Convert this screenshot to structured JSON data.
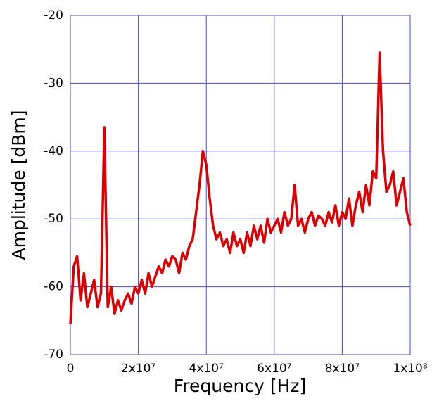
{
  "chart_data": {
    "type": "line",
    "x_label": "Frequency [Hz]",
    "y_label": "Amplitude [dBm]",
    "x": [
      0,
      1000000,
      2000000,
      3000000,
      4000000,
      5000000,
      6000000,
      7000000,
      8000000,
      9000000,
      10000000,
      11000000,
      12000000,
      13000000,
      14000000,
      15000000,
      16000000,
      17000000,
      18000000,
      19000000,
      20000000,
      21000000,
      22000000,
      23000000,
      24000000,
      25000000,
      26000000,
      27000000,
      28000000,
      29000000,
      30000000,
      31000000,
      32000000,
      33000000,
      34000000,
      35000000,
      36000000,
      37000000,
      38000000,
      39000000,
      40000000,
      41000000,
      42000000,
      43000000,
      44000000,
      45000000,
      46000000,
      47000000,
      48000000,
      49000000,
      50000000,
      51000000,
      52000000,
      53000000,
      54000000,
      55000000,
      56000000,
      57000000,
      58000000,
      59000000,
      60000000,
      61000000,
      62000000,
      63000000,
      64000000,
      65000000,
      66000000,
      67000000,
      68000000,
      69000000,
      70000000,
      71000000,
      72000000,
      73000000,
      74000000,
      75000000,
      76000000,
      77000000,
      78000000,
      79000000,
      80000000,
      81000000,
      82000000,
      83000000,
      84000000,
      85000000,
      86000000,
      87000000,
      88000000,
      89000000,
      90000000,
      91000000,
      92000000,
      93000000,
      94000000,
      95000000,
      96000000,
      97000000,
      98000000,
      99000000,
      100000000
    ],
    "values": [
      -65.5,
      -57,
      -55.5,
      -62,
      -58,
      -63,
      -61,
      -59,
      -63,
      -61,
      -36.5,
      -63,
      -60,
      -64,
      -62,
      -63.5,
      -62,
      -61,
      -62.5,
      -60,
      -61,
      -59,
      -61,
      -58,
      -60,
      -58.5,
      -57,
      -58,
      -56,
      -57,
      -55.5,
      -56,
      -58,
      -55,
      -56,
      -54,
      -53,
      -49,
      -45,
      -40,
      -42,
      -47,
      -51,
      -53,
      -52,
      -54,
      -53,
      -55,
      -52,
      -54,
      -53,
      -55,
      -52,
      -54,
      -51,
      -53,
      -51,
      -53.5,
      -50,
      -52,
      -51,
      -50,
      -52,
      -49,
      -51,
      -50,
      -45,
      -51,
      -50,
      -52,
      -50,
      -49,
      -51,
      -49.5,
      -50,
      -51,
      -49,
      -50.5,
      -48,
      -51,
      -49,
      -50,
      -47,
      -51,
      -48,
      -46,
      -49,
      -45,
      -48,
      -43,
      -44,
      -25.5,
      -40,
      -46,
      -45,
      -43,
      -48,
      -46,
      -44,
      -49,
      -51
    ],
    "color": "#dd0000",
    "xlim": [
      0,
      100000000
    ],
    "xticks": [
      0,
      {
        "value": 20000000,
        "label": "2x10⁷"
      },
      {
        "value": 40000000,
        "label": "4x10⁷"
      },
      {
        "value": 60000000,
        "label": "6x10⁷"
      },
      {
        "value": 80000000,
        "label": "8x10⁷"
      },
      {
        "value": 100000000,
        "label": "1x10⁸"
      }
    ],
    "ylim": [
      -70,
      -20
    ],
    "yticks": [
      -70,
      -60,
      -50,
      -40,
      -30,
      -20
    ],
    "grid": true,
    "grid_color": "#4a4acc"
  }
}
